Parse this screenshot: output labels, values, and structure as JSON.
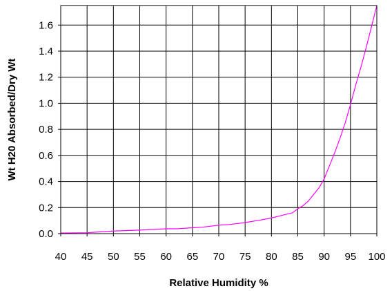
{
  "chart_data": {
    "type": "line",
    "xlabel": "Relative Humidity %",
    "ylabel": "Wt H20 Absorbed/Dry Wt",
    "xlim": [
      40,
      100
    ],
    "ylim": [
      0,
      1.75
    ],
    "x_ticks": [
      40,
      45,
      50,
      55,
      60,
      65,
      70,
      75,
      80,
      85,
      90,
      95,
      100
    ],
    "y_ticks": [
      "0.0",
      "0.2",
      "0.4",
      "0.6",
      "0.8",
      "1.0",
      "1.2",
      "1.4",
      "1.6"
    ],
    "grid": true,
    "legend": "none",
    "line_color": "#ff00ff",
    "series": [
      {
        "x": [
          40,
          45,
          50,
          55,
          60,
          62,
          65,
          67,
          70,
          72,
          75,
          78,
          80,
          82,
          84,
          85,
          86,
          87,
          88,
          89,
          90,
          91,
          92,
          93,
          94,
          95,
          96,
          97,
          98,
          99,
          100
        ],
        "y": [
          0.005,
          0.007,
          0.02,
          0.027,
          0.037,
          0.037,
          0.045,
          0.05,
          0.065,
          0.07,
          0.085,
          0.105,
          0.12,
          0.14,
          0.16,
          0.19,
          0.215,
          0.25,
          0.3,
          0.35,
          0.42,
          0.52,
          0.62,
          0.73,
          0.85,
          0.99,
          1.14,
          1.28,
          1.43,
          1.59,
          1.75
        ]
      }
    ]
  }
}
